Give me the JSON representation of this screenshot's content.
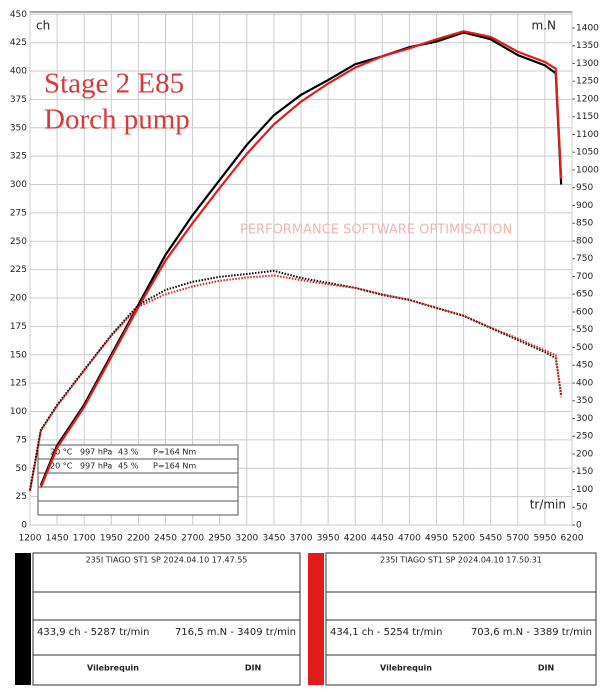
{
  "chart_data": {
    "type": "line",
    "annotation": [
      "Stage 2 E85",
      "Dorch pump"
    ],
    "watermark": "PERFORMANCE SOFTWARE OPTIMISATION",
    "ylabel": "ch",
    "y2label": "m.N",
    "xlabel": "tr/min",
    "x": [
      1200,
      1300,
      1450,
      1700,
      1950,
      2200,
      2450,
      2700,
      2950,
      3200,
      3450,
      3700,
      3950,
      4200,
      4450,
      4700,
      4950,
      5200,
      5450,
      5700,
      5950,
      6050,
      6100
    ],
    "xlim": [
      1200,
      6200
    ],
    "xticks": [
      1200,
      1450,
      1700,
      1950,
      2200,
      2450,
      2700,
      2950,
      3200,
      3450,
      3700,
      3950,
      4200,
      4450,
      4700,
      4950,
      5200,
      5450,
      5700,
      5950,
      6200
    ],
    "ylim": [
      0,
      452
    ],
    "yticks": [
      0,
      25,
      50,
      75,
      100,
      125,
      150,
      175,
      200,
      225,
      250,
      275,
      300,
      325,
      350,
      375,
      400,
      425,
      450
    ],
    "y2lim": [
      0,
      1445
    ],
    "y2ticks": [
      0,
      50,
      100,
      150,
      200,
      250,
      300,
      350,
      400,
      450,
      500,
      550,
      600,
      650,
      700,
      750,
      800,
      850,
      900,
      950,
      1000,
      1050,
      1100,
      1150,
      1200,
      1250,
      1300,
      1350,
      1400
    ],
    "grid": true,
    "series": [
      {
        "color": "#000000",
        "style": "solid",
        "values": [
          null,
          35,
          70,
          106,
          150,
          194,
          238,
          273,
          304,
          335,
          361,
          379,
          392,
          406,
          413,
          421,
          426,
          434,
          428,
          414,
          405,
          398,
          300
        ]
      },
      {
        "color": "#e31b1b",
        "style": "solid",
        "values": [
          null,
          33,
          68,
          104,
          148,
          192,
          233,
          266,
          297,
          327,
          353,
          373,
          389,
          403,
          413,
          420,
          428,
          435,
          430,
          417,
          408,
          402,
          305
        ]
      },
      {
        "color": "#000000",
        "style": "dotted",
        "axis": "y2",
        "values": [
          99,
          268,
          338,
          437,
          535,
          620,
          662,
          685,
          699,
          707,
          716,
          696,
          682,
          668,
          648,
          634,
          611,
          589,
          555,
          521,
          487,
          470,
          366
        ]
      },
      {
        "color": "#e31b1b",
        "style": "dotted",
        "axis": "y2",
        "values": [
          95,
          265,
          335,
          435,
          533,
          615,
          650,
          672,
          688,
          697,
          703,
          690,
          678,
          668,
          650,
          634,
          612,
          590,
          556,
          525,
          492,
          478,
          360
        ]
      }
    ],
    "conditions": [
      [
        "20 °C",
        "997 hPa",
        "43 %",
        "P=164 Nm"
      ],
      [
        "20 °C",
        "997 hPa",
        "45 %",
        "P=164 Nm"
      ]
    ]
  },
  "runs": [
    {
      "title": "235I TIAGO ST1 SP   2024.04.10 17.47.55",
      "power": "433,9 ch - 5287 tr/min",
      "torque": "716,5 m.N - 3409 tr/min",
      "left": "Vilebrequin",
      "right": "DIN"
    },
    {
      "title": "235I TIAGO ST1 SP   2024.04.10 17.50.31",
      "power": "434,1 ch - 5254 tr/min",
      "torque": "703,6 m.N - 3389 tr/min",
      "left": "Vilebrequin",
      "right": "DIN"
    }
  ]
}
